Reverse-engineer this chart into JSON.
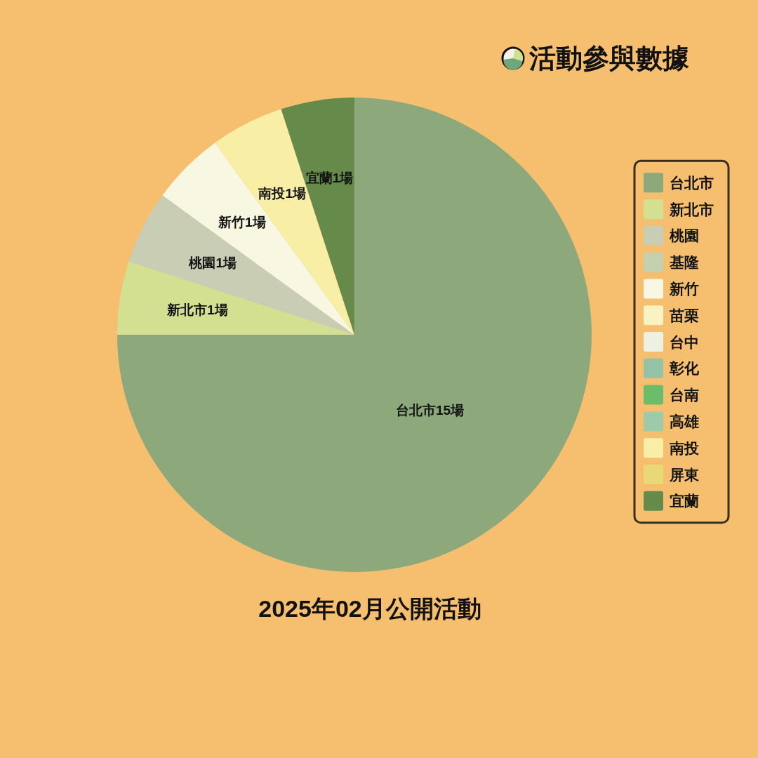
{
  "chart_data": {
    "type": "pie",
    "title": "活動參與數據",
    "subtitle": "2025年02月公開活動",
    "categories": [
      "台北市",
      "新北市",
      "桃園",
      "基隆",
      "新竹",
      "苗栗",
      "台中",
      "彰化",
      "台南",
      "高雄",
      "南投",
      "屏東",
      "宜蘭"
    ],
    "values": [
      15,
      1,
      1,
      0,
      1,
      0,
      0,
      0,
      0,
      0,
      1,
      0,
      1
    ],
    "colors": [
      "#8da87b",
      "#d3e091",
      "#c8cdb4",
      "#c5d0b0",
      "#f8f7e2",
      "#f8f3c0",
      "#eef1e0",
      "#93c3a4",
      "#6bbd6c",
      "#9ecaaa",
      "#f8eea6",
      "#e8d876",
      "#668a4a"
    ],
    "value_labels": [
      "台北市15場",
      "新北市1場",
      "桃園1場",
      null,
      "新竹1場",
      null,
      null,
      null,
      null,
      null,
      "南投1場",
      null,
      "宜蘭1場"
    ],
    "legend": "right"
  }
}
